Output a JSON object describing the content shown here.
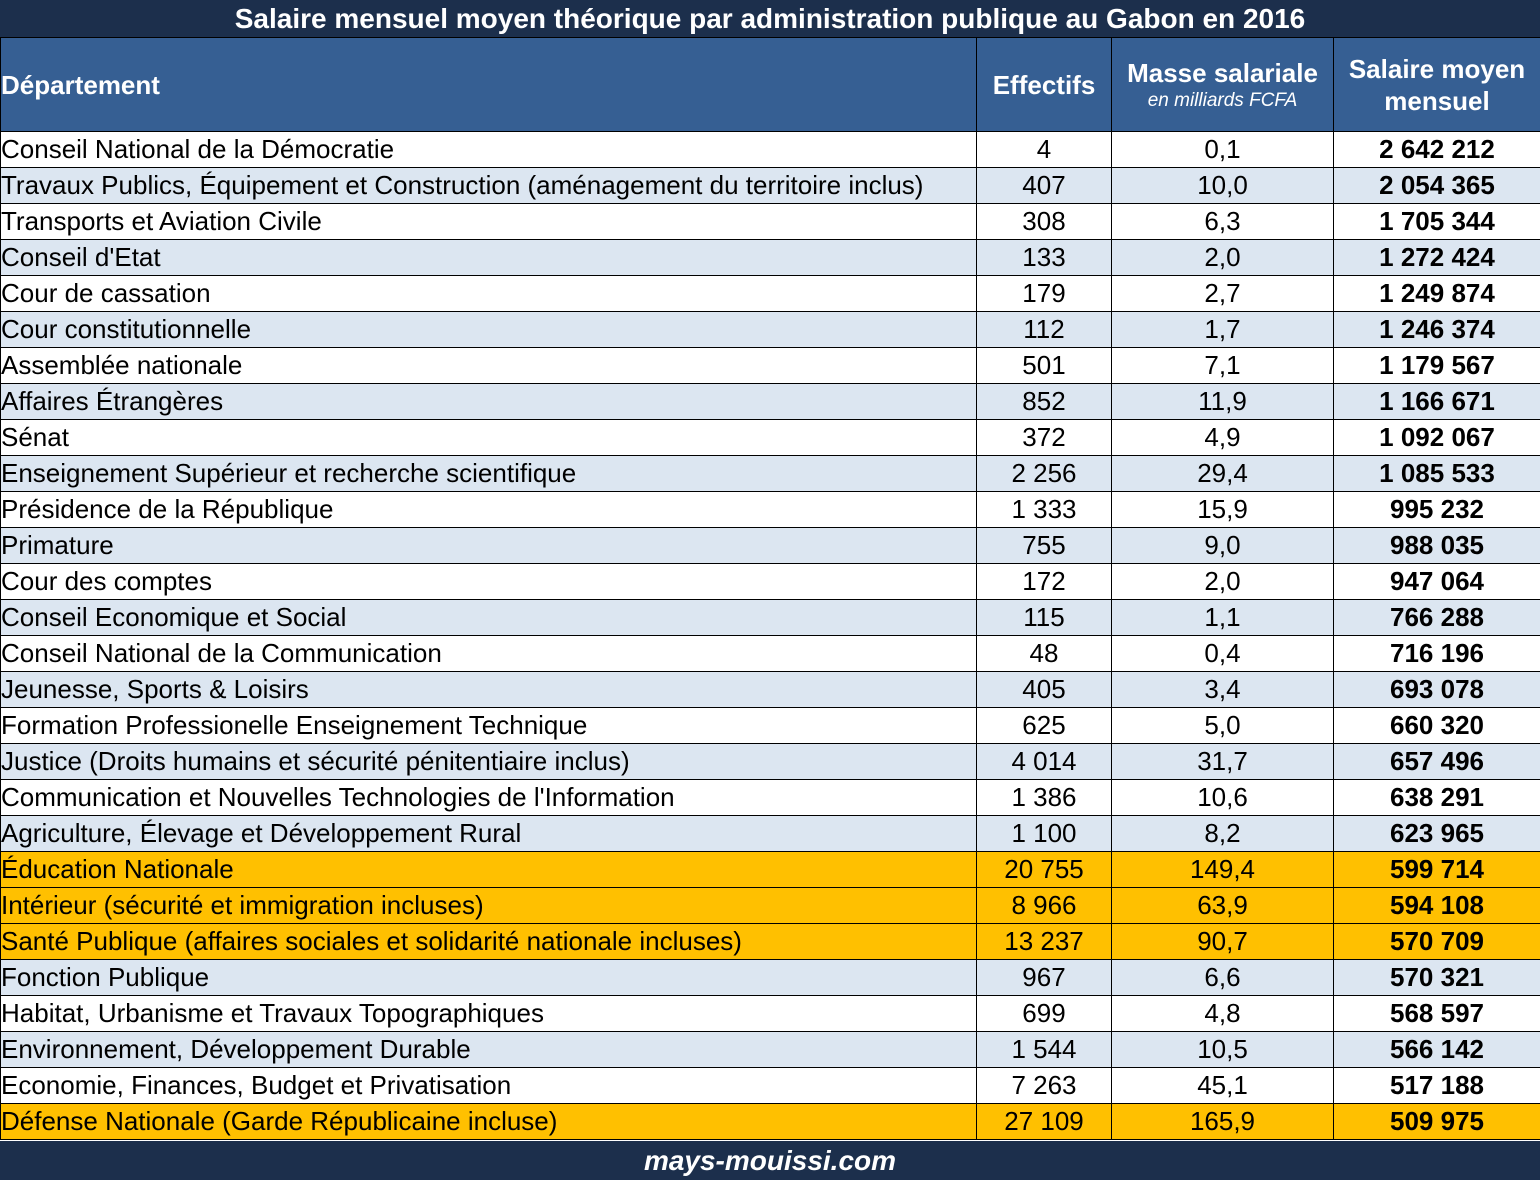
{
  "title": "Salaire mensuel moyen théorique par administration publique au Gabon en 2016",
  "footer": "mays-mouissi.com",
  "colors": {
    "header_bg": "#365f93",
    "banner_bg": "#1c2f4c",
    "row_alt": "#dce6f1",
    "highlight": "#ffc000"
  },
  "headers": {
    "departement": "Département",
    "effectifs": "Effectifs",
    "masse": "Masse salariale",
    "masse_unit": "en milliards FCFA",
    "salaire_line1": "Salaire moyen",
    "salaire_line2": "mensuel"
  },
  "rows": [
    {
      "dept": "Conseil National de la Démocratie",
      "effectifs": "4",
      "masse": "0,1",
      "salaire": "2 642 212",
      "highlight": false
    },
    {
      "dept": "Travaux Publics, Équipement et Construction (aménagement du territoire inclus)",
      "effectifs": "407",
      "masse": "10,0",
      "salaire": "2 054 365",
      "highlight": false
    },
    {
      "dept": "Transports et Aviation Civile",
      "effectifs": "308",
      "masse": "6,3",
      "salaire": "1 705 344",
      "highlight": false
    },
    {
      "dept": "Conseil d'Etat",
      "effectifs": "133",
      "masse": "2,0",
      "salaire": "1 272 424",
      "highlight": false
    },
    {
      "dept": "Cour de cassation",
      "effectifs": "179",
      "masse": "2,7",
      "salaire": "1 249 874",
      "highlight": false
    },
    {
      "dept": "Cour constitutionnelle",
      "effectifs": "112",
      "masse": "1,7",
      "salaire": "1 246 374",
      "highlight": false
    },
    {
      "dept": "Assemblée nationale",
      "effectifs": "501",
      "masse": "7,1",
      "salaire": "1 179 567",
      "highlight": false
    },
    {
      "dept": "Affaires Étrangères",
      "effectifs": "852",
      "masse": "11,9",
      "salaire": "1 166 671",
      "highlight": false
    },
    {
      "dept": "Sénat",
      "effectifs": "372",
      "masse": "4,9",
      "salaire": "1 092 067",
      "highlight": false
    },
    {
      "dept": "Enseignement Supérieur et recherche scientifique",
      "effectifs": "2 256",
      "masse": "29,4",
      "salaire": "1 085 533",
      "highlight": false
    },
    {
      "dept": "Présidence de la République",
      "effectifs": "1 333",
      "masse": "15,9",
      "salaire": "995 232",
      "highlight": false
    },
    {
      "dept": "Primature",
      "effectifs": "755",
      "masse": "9,0",
      "salaire": "988 035",
      "highlight": false
    },
    {
      "dept": "Cour des comptes",
      "effectifs": "172",
      "masse": "2,0",
      "salaire": "947 064",
      "highlight": false
    },
    {
      "dept": "Conseil Economique et Social",
      "effectifs": "115",
      "masse": "1,1",
      "salaire": "766 288",
      "highlight": false
    },
    {
      "dept": "Conseil National de la Communication",
      "effectifs": "48",
      "masse": "0,4",
      "salaire": "716 196",
      "highlight": false
    },
    {
      "dept": "Jeunesse, Sports & Loisirs",
      "effectifs": "405",
      "masse": "3,4",
      "salaire": "693 078",
      "highlight": false
    },
    {
      "dept": "Formation Professionelle Enseignement Technique",
      "effectifs": "625",
      "masse": "5,0",
      "salaire": "660 320",
      "highlight": false
    },
    {
      "dept": "Justice (Droits humains et sécurité pénitentiaire inclus)",
      "effectifs": "4 014",
      "masse": "31,7",
      "salaire": "657 496",
      "highlight": false
    },
    {
      "dept": "Communication et Nouvelles Technologies de l'Information",
      "effectifs": "1 386",
      "masse": "10,6",
      "salaire": "638 291",
      "highlight": false
    },
    {
      "dept": "Agriculture, Élevage et Développement Rural",
      "effectifs": "1 100",
      "masse": "8,2",
      "salaire": "623 965",
      "highlight": false
    },
    {
      "dept": "Éducation Nationale",
      "effectifs": "20 755",
      "masse": "149,4",
      "salaire": "599 714",
      "highlight": true
    },
    {
      "dept": "Intérieur (sécurité et immigration incluses)",
      "effectifs": "8 966",
      "masse": "63,9",
      "salaire": "594 108",
      "highlight": true
    },
    {
      "dept": "Santé Publique (affaires sociales et solidarité nationale incluses)",
      "effectifs": "13 237",
      "masse": "90,7",
      "salaire": "570 709",
      "highlight": true
    },
    {
      "dept": "Fonction Publique",
      "effectifs": "967",
      "masse": "6,6",
      "salaire": "570 321",
      "highlight": false
    },
    {
      "dept": "Habitat, Urbanisme et Travaux Topographiques",
      "effectifs": "699",
      "masse": "4,8",
      "salaire": "568 597",
      "highlight": false
    },
    {
      "dept": "Environnement, Développement Durable",
      "effectifs": "1 544",
      "masse": "10,5",
      "salaire": "566 142",
      "highlight": false
    },
    {
      "dept": "Economie, Finances, Budget et Privatisation",
      "effectifs": "7 263",
      "masse": "45,1",
      "salaire": "517 188",
      "highlight": false
    },
    {
      "dept": "Défense Nationale (Garde Républicaine incluse)",
      "effectifs": "27 109",
      "masse": "165,9",
      "salaire": "509 975",
      "highlight": true
    }
  ]
}
